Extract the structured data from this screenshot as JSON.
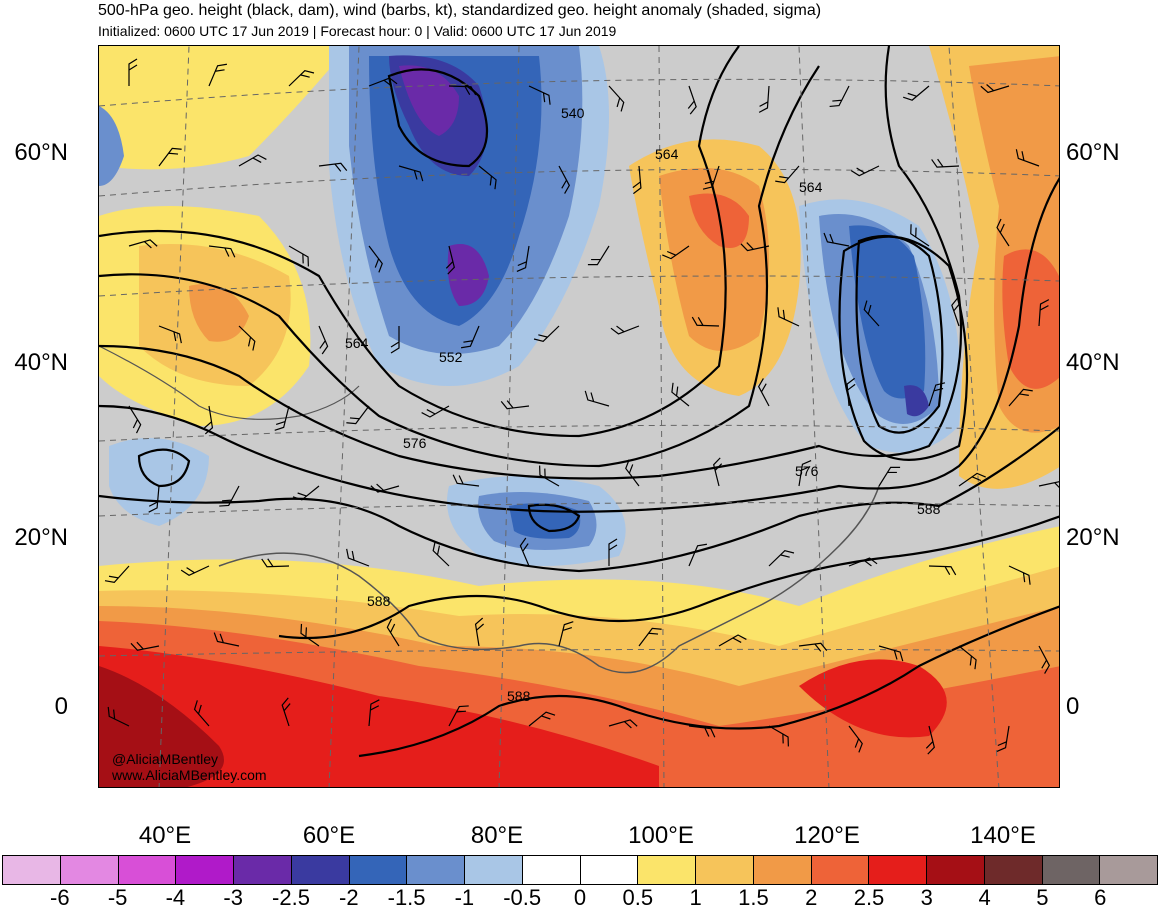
{
  "header": {
    "title": "500-hPa geo. height (black, dam), wind (barbs, kt), standardized geo. height anomaly (shaded, sigma)",
    "subtitle": "Initialized: 0600 UTC 17 Jun 2019 | Forecast hour: 0 | Valid: 0600 UTC 17 Jun 2019"
  },
  "latitude_labels": [
    "60°N",
    "40°N",
    "20°N",
    "0"
  ],
  "longitude_labels": [
    "40°E",
    "60°E",
    "80°E",
    "100°E",
    "120°E",
    "140°E"
  ],
  "contour_labels": [
    "540",
    "564",
    "564",
    "564",
    "552",
    "576",
    "576",
    "588",
    "588",
    "588"
  ],
  "credits": {
    "handle": "@AliciaMBentley",
    "website": "www.AliciaMBentley.com"
  },
  "colorbar": {
    "colors": [
      "#e8b7e6",
      "#e388e2",
      "#d84fd7",
      "#b01ac9",
      "#6a2aa8",
      "#3a3aa0",
      "#3465b8",
      "#6a8fcd",
      "#a9c6e6",
      "#ffffff",
      "#ffffff",
      "#fbe46a",
      "#f6c45a",
      "#f19a47",
      "#ee6338",
      "#e51e1b",
      "#a50f15",
      "#6e2a2a",
      "#6e6464",
      "#a89a9a"
    ],
    "tick_labels": [
      "-6",
      "-5",
      "-4",
      "-3",
      "-2.5",
      "-2",
      "-1.5",
      "-1",
      "-0.5",
      "0",
      "0.5",
      "1",
      "1.5",
      "2",
      "2.5",
      "3",
      "4",
      "5",
      "6"
    ]
  },
  "colors": {
    "neutral_gray": "#cccccc",
    "contour": "#000000",
    "coast": "#555555"
  }
}
